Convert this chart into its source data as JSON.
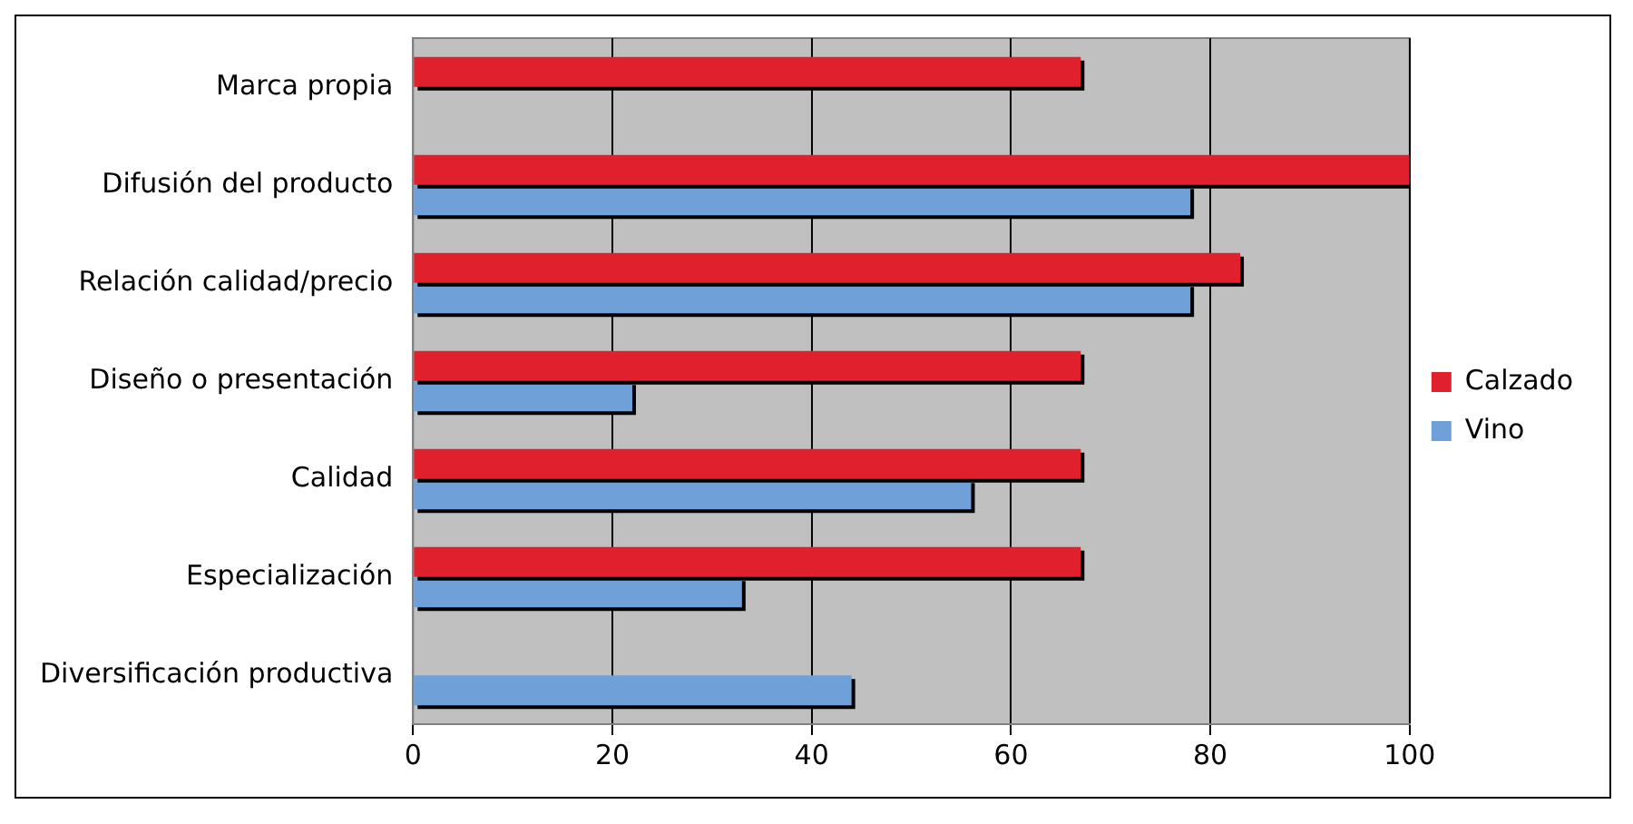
{
  "chart_data": {
    "type": "bar",
    "orientation": "horizontal",
    "categories": [
      "Marca propia",
      "Difusión del producto",
      "Relación calidad/precio",
      "Diseño o presentación",
      "Calidad",
      "Especialización",
      "Diversificación productiva"
    ],
    "series": [
      {
        "name": "Calzado",
        "color": "#e0202c",
        "values": [
          67,
          100,
          83,
          67,
          67,
          67,
          0
        ]
      },
      {
        "name": "Vino",
        "color": "#6fa1d8",
        "values": [
          0,
          78,
          78,
          22,
          56,
          33,
          44
        ]
      }
    ],
    "xlim": [
      0,
      100
    ],
    "xticks": [
      0,
      20,
      40,
      60,
      80,
      100
    ],
    "grid": "x",
    "legend": "right"
  }
}
